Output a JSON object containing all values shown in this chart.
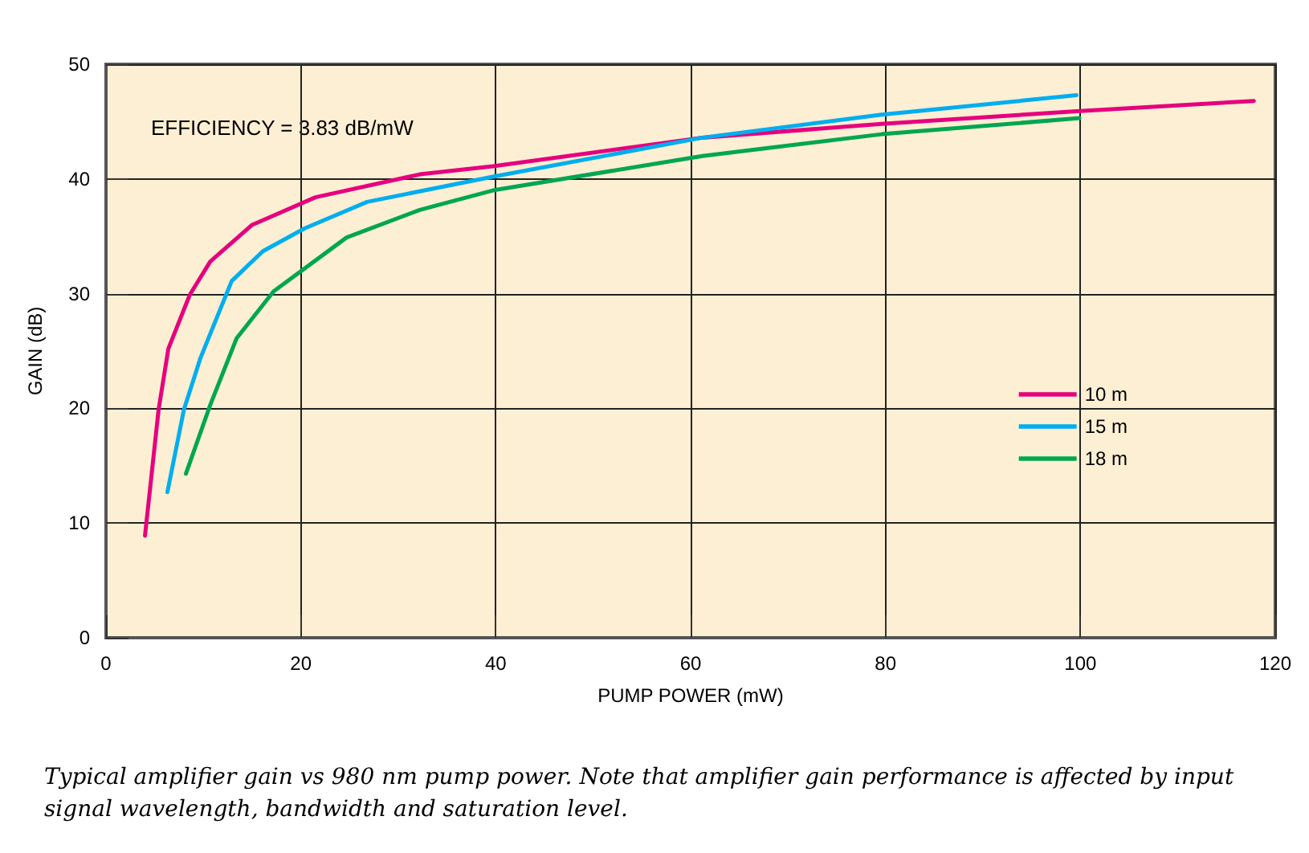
{
  "chart_data": {
    "type": "line",
    "xlabel": "PUMP POWER (mW)",
    "ylabel": "GAIN (dB)",
    "xlim": [
      0,
      120
    ],
    "xticks": [
      0,
      20,
      40,
      60,
      80,
      100,
      120
    ],
    "ylim": [
      0,
      50
    ],
    "yticks": [
      0,
      10,
      20,
      30,
      40,
      50
    ],
    "grid": true,
    "legend": "right",
    "marker": "none",
    "line_style": "solid",
    "series": [
      {
        "name": "10 m",
        "color": "#e6007e",
        "x": [
          4.0,
          5.4,
          6.4,
          8.6,
          10.7,
          15.0,
          21.5,
          32.2,
          39.7,
          61.2,
          79.6,
          99.6,
          117.8
        ],
        "values": [
          8.9,
          19.9,
          25.2,
          29.9,
          32.8,
          36.0,
          38.4,
          40.4,
          41.1,
          43.6,
          44.8,
          45.9,
          46.8
        ]
      },
      {
        "name": "15 m",
        "color": "#00aeef",
        "x": [
          6.3,
          8.0,
          9.7,
          12.9,
          16.1,
          20.4,
          26.8,
          39.7,
          61.2,
          79.6,
          99.6
        ],
        "values": [
          12.7,
          19.9,
          24.4,
          31.1,
          33.7,
          35.7,
          38.0,
          40.2,
          43.6,
          45.6,
          47.3
        ]
      },
      {
        "name": "18 m",
        "color": "#00a651",
        "x": [
          8.2,
          10.7,
          13.4,
          17.2,
          24.7,
          32.2,
          39.7,
          61.2,
          79.6,
          99.9
        ],
        "values": [
          14.3,
          20.3,
          26.1,
          30.2,
          34.9,
          37.3,
          39.0,
          42.0,
          43.9,
          45.3
        ]
      }
    ],
    "annotations": [
      "EFFICIENCY = 3.83 dB/mW",
      "Typical amplifier gain vs 980 nm pump power. Note that amplifier gain performance is affected by input signal wavelength, bandwidth and saturation level."
    ]
  }
}
